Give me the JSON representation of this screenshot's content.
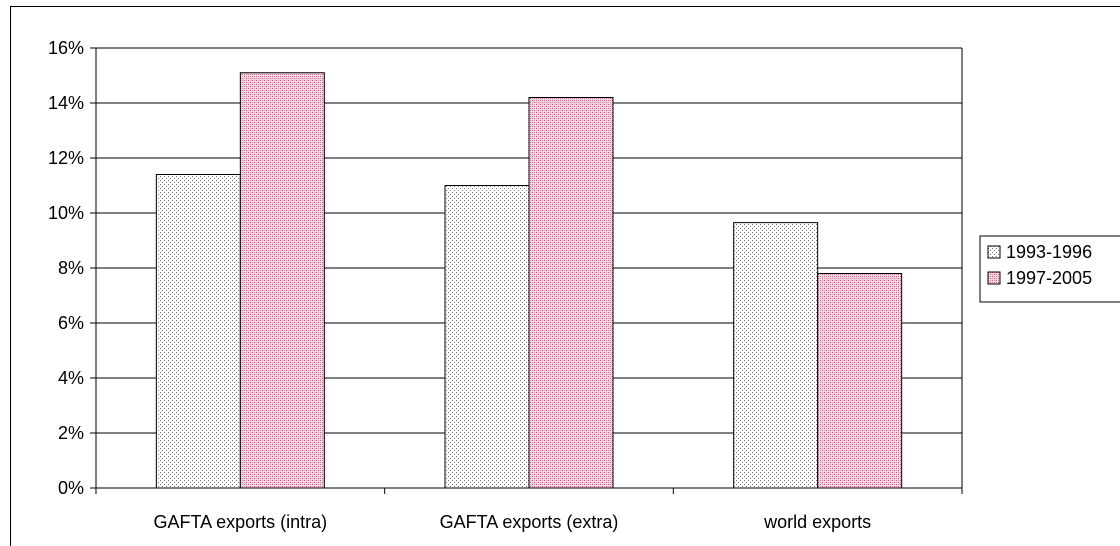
{
  "chart_data": {
    "type": "bar",
    "title": "",
    "xlabel": "",
    "ylabel": "",
    "categories": [
      "GAFTA exports (intra)",
      "GAFTA exports (extra)",
      "world exports"
    ],
    "series": [
      {
        "name": "1993-1996",
        "values": [
          0.114,
          0.11,
          0.0965
        ],
        "pattern": "dots",
        "color": "#ffffff"
      },
      {
        "name": "1997-2005",
        "values": [
          0.151,
          0.142,
          0.078
        ],
        "pattern": "dots",
        "color": "#ecc4d4"
      }
    ],
    "ylim": [
      0,
      0.16
    ],
    "yticks": [
      0,
      0.02,
      0.04,
      0.06,
      0.08,
      0.1,
      0.12,
      0.14,
      0.16
    ],
    "ytick_labels": [
      "0%",
      "2%",
      "4%",
      "6%",
      "8%",
      "10%",
      "12%",
      "14%",
      "16%"
    ],
    "grid": "horizontal",
    "legend": "right"
  }
}
